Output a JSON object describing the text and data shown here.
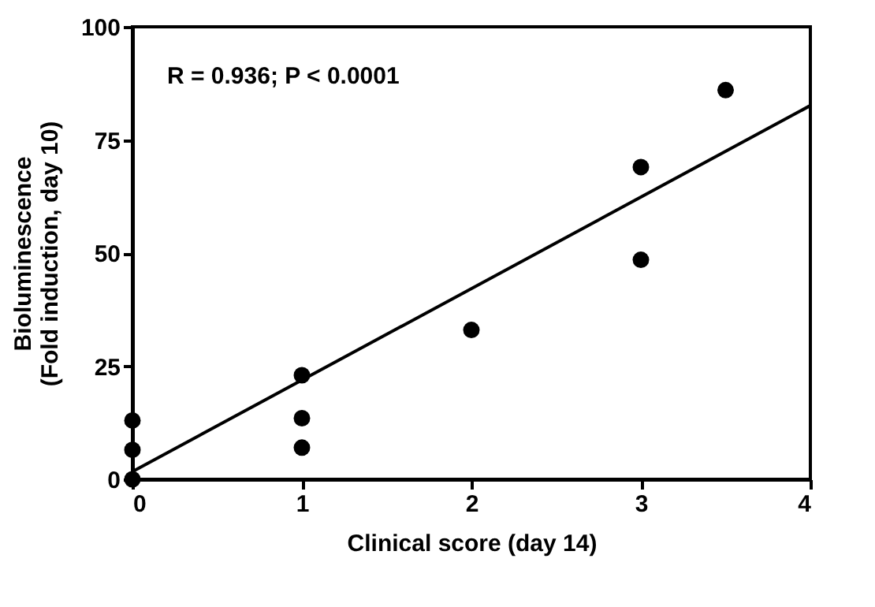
{
  "chart_data": {
    "type": "scatter",
    "xlabel": "Clinical score (day 14)",
    "ylabel": "Bioluminescence\n(Fold induction, day 10)",
    "annotations": [
      "R = 0.936; P < 0.0001"
    ],
    "xlim": [
      0,
      4
    ],
    "ylim": [
      0,
      100
    ],
    "xticks": [
      0,
      1,
      2,
      3,
      4
    ],
    "yticks": [
      0,
      25,
      50,
      75,
      100
    ],
    "grid": false,
    "series": [
      {
        "marker": "circle",
        "color": "#000000",
        "x": [
          0,
          0,
          0,
          1,
          1,
          1,
          2,
          3,
          3,
          3.5
        ],
        "values": [
          13,
          6.5,
          0,
          23,
          13.5,
          7,
          33,
          69,
          48.5,
          86
        ]
      },
      {
        "type": "line",
        "marker": "none",
        "color": "#000000",
        "x": [
          0,
          4
        ],
        "values": [
          1.7,
          82.6
        ]
      }
    ]
  }
}
